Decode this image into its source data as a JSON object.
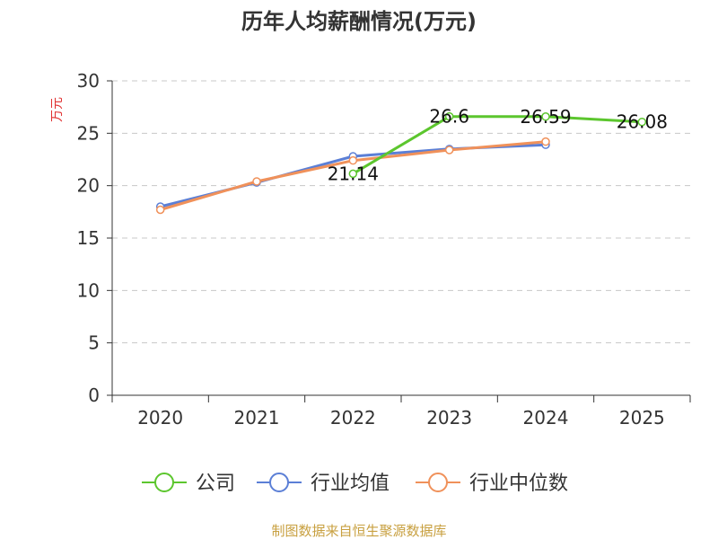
{
  "chart_data": {
    "type": "line",
    "title": "历年人均薪酬情况(万元)",
    "ylabel": "万元",
    "xlabel": "",
    "ylim": [
      0,
      30
    ],
    "yticks": [
      0,
      5,
      10,
      15,
      20,
      25,
      30
    ],
    "categories": [
      "2020",
      "2021",
      "2022",
      "2023",
      "2024",
      "2025"
    ],
    "grid": true,
    "legend_position": "bottom",
    "series": [
      {
        "name": "公司",
        "color": "#5cc62e",
        "values": [
          null,
          null,
          21.14,
          26.6,
          26.59,
          26.08
        ],
        "labels": [
          "",
          "",
          "21.14",
          "26.6",
          "26.59",
          "26.08"
        ]
      },
      {
        "name": "行业均值",
        "color": "#5b7fd6",
        "values": [
          18.0,
          20.3,
          22.8,
          23.5,
          23.9,
          null
        ]
      },
      {
        "name": "行业中位数",
        "color": "#f0915a",
        "values": [
          17.7,
          20.4,
          22.4,
          23.4,
          24.2,
          null
        ]
      }
    ],
    "source": "制图数据来自恒生聚源数据库"
  }
}
